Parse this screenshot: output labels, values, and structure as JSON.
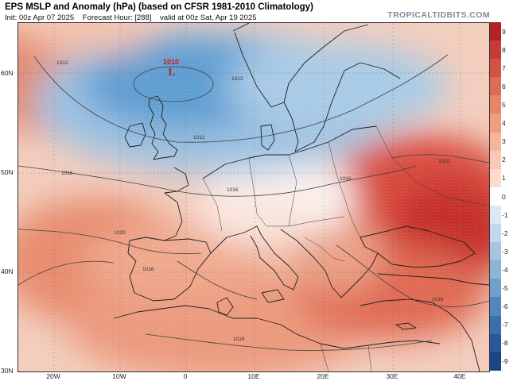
{
  "header": {
    "title": "EPS MSLP and Anomaly (hPa) (based on CFSR 1981-2010 Climatology)",
    "init": "Init: 00z Apr 07 2025",
    "forecast_hour": "Forecast Hour: [288]",
    "valid": "valid at 00z Sat, Apr 19 2025",
    "brand": "TROPICALTIDBITS.COM"
  },
  "axes": {
    "lat_labels": [
      "60N",
      "50N",
      "40N",
      "30N"
    ],
    "lon_labels": [
      "20W",
      "10W",
      "0",
      "10E",
      "20E",
      "30E",
      "40E"
    ]
  },
  "colorbar": {
    "ticks": [
      "9",
      "8",
      "7",
      "6",
      "5",
      "4",
      "3",
      "2",
      "1",
      "0",
      "-1",
      "-2",
      "-3",
      "-4",
      "-5",
      "-6",
      "-7",
      "-8",
      "-9"
    ],
    "colors": [
      "#b3202a",
      "#c43a36",
      "#d25244",
      "#de6b55",
      "#e88468",
      "#f09d7f",
      "#f5b59a",
      "#f8cab5",
      "#fbdccf",
      "#ffffff",
      "#dbe8f3",
      "#c3d8ea",
      "#a6c5e0",
      "#8cb4d7",
      "#6f9fcb",
      "#5287bd",
      "#3b6fac",
      "#29589a",
      "#1b4585"
    ]
  },
  "map": {
    "low_center_label": "L",
    "low_center_value": "1010",
    "isobar_labels": [
      "1012",
      "1012",
      "1012",
      "1016",
      "1016",
      "1020",
      "1020",
      "1016",
      "1016",
      "1016",
      "1016"
    ],
    "colors": {
      "ocean_base": "#f3d2c4",
      "blue_anomaly": "#5f9ed2",
      "red_anomaly": "#d63a2f",
      "isobar": "#444444",
      "coastline": "#222222",
      "low_marker": "#cc1a1a"
    }
  }
}
